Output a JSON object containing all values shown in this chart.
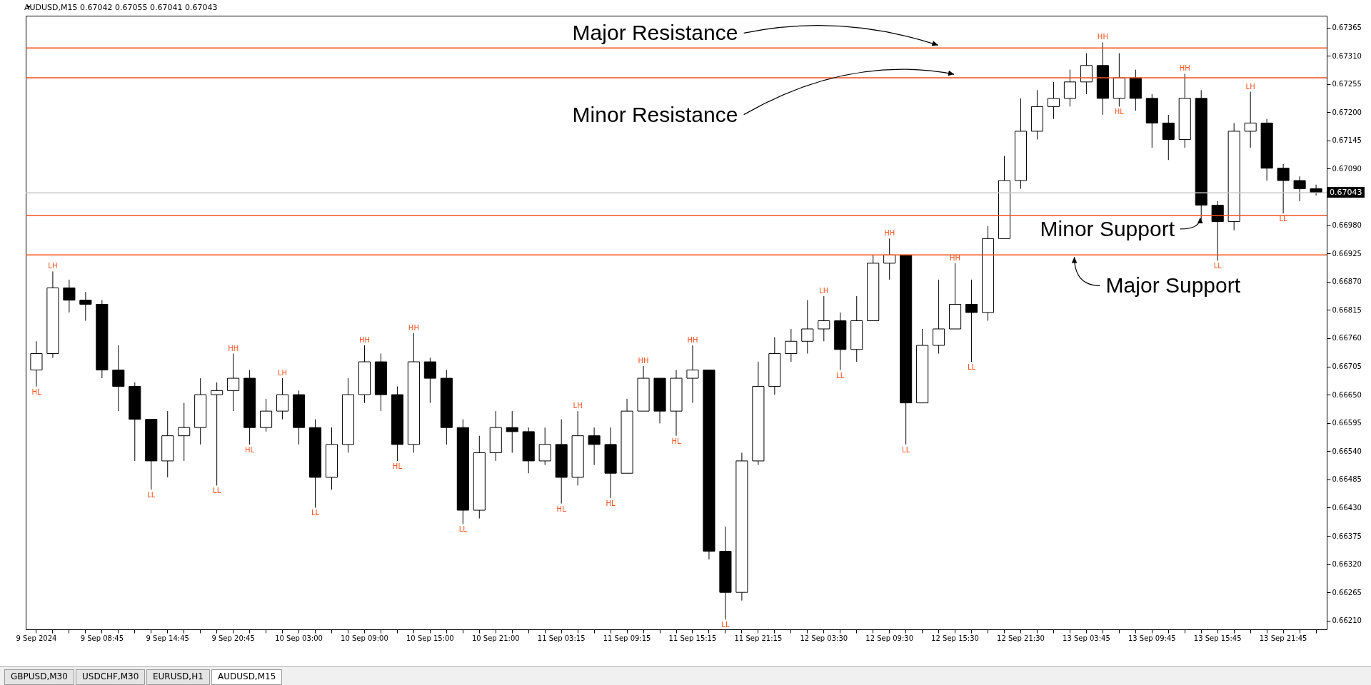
{
  "chart_data": {
    "type": "candlestick",
    "title": "AUDUSD,M15  0.67042 0.67055 0.67041 0.67043",
    "categories": [
      "9 Sep 2024",
      null,
      null,
      null,
      "9 Sep 08:45",
      null,
      null,
      null,
      "9 Sep 14:45",
      null,
      null,
      null,
      "9 Sep 20:45",
      null,
      null,
      null,
      "10 Sep 03:00",
      null,
      null,
      null,
      "10 Sep 09:00",
      null,
      null,
      null,
      "10 Sep 15:00",
      null,
      null,
      null,
      "10 Sep 21:00",
      null,
      null,
      null,
      "11 Sep 03:15",
      null,
      null,
      null,
      "11 Sep 09:15",
      null,
      null,
      null,
      "11 Sep 15:15",
      null,
      null,
      null,
      "11 Sep 21:15",
      null,
      null,
      null,
      "12 Sep 03:30",
      null,
      null,
      null,
      "12 Sep 09:30",
      null,
      null,
      null,
      "12 Sep 15:30",
      null,
      null,
      null,
      "12 Sep 21:30",
      null,
      null,
      null,
      "13 Sep 03:45",
      null,
      null,
      null,
      "13 Sep 09:45",
      null,
      null,
      null,
      "13 Sep 15:45",
      null,
      null,
      null,
      "13 Sep 21:45",
      null,
      null
    ],
    "ohlc": [
      [
        0.66698,
        0.66754,
        0.66666,
        0.6673
      ],
      [
        0.6673,
        0.6689,
        0.66722,
        0.66858
      ],
      [
        0.66858,
        0.66874,
        0.6681,
        0.66834
      ],
      [
        0.66834,
        0.6685,
        0.66794,
        0.66826
      ],
      [
        0.66826,
        0.66834,
        0.66682,
        0.66698
      ],
      [
        0.66698,
        0.66746,
        0.66618,
        0.66666
      ],
      [
        0.66666,
        0.66674,
        0.66521,
        0.66602
      ],
      [
        0.66602,
        0.66602,
        0.66465,
        0.66521
      ],
      [
        0.66521,
        0.66618,
        0.66489,
        0.6657
      ],
      [
        0.6657,
        0.66634,
        0.66521,
        0.66586
      ],
      [
        0.66586,
        0.66682,
        0.66553,
        0.6665
      ],
      [
        0.6665,
        0.66674,
        0.66473,
        0.66658
      ],
      [
        0.66658,
        0.6673,
        0.66618,
        0.66682
      ],
      [
        0.66682,
        0.66698,
        0.66553,
        0.66586
      ],
      [
        0.66586,
        0.66642,
        0.66578,
        0.66618
      ],
      [
        0.66618,
        0.66682,
        0.66602,
        0.6665
      ],
      [
        0.6665,
        0.66658,
        0.66553,
        0.66586
      ],
      [
        0.66586,
        0.66602,
        0.6643,
        0.66489
      ],
      [
        0.66489,
        0.66586,
        0.66465,
        0.66553
      ],
      [
        0.66553,
        0.66682,
        0.66537,
        0.6665
      ],
      [
        0.6665,
        0.66746,
        0.66634,
        0.66714
      ],
      [
        0.66714,
        0.6673,
        0.66618,
        0.6665
      ],
      [
        0.6665,
        0.66666,
        0.66521,
        0.66553
      ],
      [
        0.66553,
        0.6677,
        0.66537,
        0.66714
      ],
      [
        0.66714,
        0.66722,
        0.66634,
        0.66682
      ],
      [
        0.66682,
        0.66698,
        0.66553,
        0.66586
      ],
      [
        0.66586,
        0.66602,
        0.66398,
        0.66425
      ],
      [
        0.66425,
        0.6657,
        0.66409,
        0.66537
      ],
      [
        0.66537,
        0.66618,
        0.66521,
        0.66586
      ],
      [
        0.66586,
        0.66618,
        0.66537,
        0.66578
      ],
      [
        0.66578,
        0.66586,
        0.66497,
        0.66521
      ],
      [
        0.66521,
        0.66586,
        0.66513,
        0.66553
      ],
      [
        0.66553,
        0.66602,
        0.66438,
        0.66489
      ],
      [
        0.66489,
        0.66618,
        0.66473,
        0.6657
      ],
      [
        0.6657,
        0.66586,
        0.66513,
        0.66553
      ],
      [
        0.66553,
        0.66586,
        0.66449,
        0.66497
      ],
      [
        0.66497,
        0.66642,
        0.66497,
        0.66618
      ],
      [
        0.66618,
        0.66706,
        0.66618,
        0.66682
      ],
      [
        0.66682,
        0.66682,
        0.66594,
        0.66618
      ],
      [
        0.66618,
        0.66698,
        0.6657,
        0.66682
      ],
      [
        0.66682,
        0.66746,
        0.66634,
        0.66698
      ],
      [
        0.66698,
        0.66698,
        0.66329,
        0.66345
      ],
      [
        0.66345,
        0.66393,
        0.66212,
        0.66265
      ],
      [
        0.66265,
        0.66537,
        0.66249,
        0.66521
      ],
      [
        0.66521,
        0.66714,
        0.66513,
        0.66666
      ],
      [
        0.66666,
        0.66762,
        0.6665,
        0.6673
      ],
      [
        0.6673,
        0.66778,
        0.66714,
        0.66754
      ],
      [
        0.66754,
        0.66834,
        0.6673,
        0.66778
      ],
      [
        0.66778,
        0.66842,
        0.66754,
        0.66794
      ],
      [
        0.66794,
        0.6681,
        0.66698,
        0.66738
      ],
      [
        0.66738,
        0.66842,
        0.66714,
        0.66794
      ],
      [
        0.66794,
        0.66922,
        0.66794,
        0.66906
      ],
      [
        0.66906,
        0.66954,
        0.66874,
        0.66922
      ],
      [
        0.66922,
        0.66922,
        0.66553,
        0.66634
      ],
      [
        0.66634,
        0.66778,
        0.66634,
        0.66746
      ],
      [
        0.66746,
        0.66874,
        0.6673,
        0.66778
      ],
      [
        0.66778,
        0.66906,
        0.66778,
        0.66826
      ],
      [
        0.66826,
        0.66874,
        0.66714,
        0.6681
      ],
      [
        0.6681,
        0.66978,
        0.66794,
        0.66954
      ],
      [
        0.66954,
        0.67115,
        0.66954,
        0.67067
      ],
      [
        0.67067,
        0.67227,
        0.67051,
        0.67163
      ],
      [
        0.67163,
        0.67243,
        0.67147,
        0.67211
      ],
      [
        0.67211,
        0.67259,
        0.67187,
        0.67227
      ],
      [
        0.67227,
        0.67283,
        0.67211,
        0.67259
      ],
      [
        0.67259,
        0.67315,
        0.67235,
        0.67291
      ],
      [
        0.67291,
        0.67336,
        0.67195,
        0.67227
      ],
      [
        0.67227,
        0.67315,
        0.67211,
        0.67267
      ],
      [
        0.67267,
        0.67283,
        0.67203,
        0.67227
      ],
      [
        0.67227,
        0.67235,
        0.67131,
        0.67179
      ],
      [
        0.67179,
        0.67195,
        0.67107,
        0.67147
      ],
      [
        0.67147,
        0.67275,
        0.67131,
        0.67227
      ],
      [
        0.67227,
        0.67243,
        0.66987,
        0.67019
      ],
      [
        0.67019,
        0.67027,
        0.66911,
        0.66987
      ],
      [
        0.66987,
        0.67179,
        0.6697,
        0.67163
      ],
      [
        0.67163,
        0.6724,
        0.67131,
        0.67179
      ],
      [
        0.67179,
        0.67187,
        0.67067,
        0.67091
      ],
      [
        0.67091,
        0.67099,
        0.67003,
        0.67067
      ],
      [
        0.67067,
        0.67075,
        0.67027,
        0.67051
      ],
      [
        0.67051,
        0.67059,
        0.67038,
        0.67043
      ]
    ],
    "value_labels": [
      "HL",
      "LH",
      null,
      null,
      null,
      null,
      null,
      "LL",
      null,
      null,
      null,
      "LL",
      "HH",
      "HL",
      null,
      "LH",
      null,
      "LL",
      null,
      null,
      "HH",
      null,
      "HL",
      "HH",
      null,
      null,
      "LL",
      null,
      null,
      null,
      null,
      null,
      "HL",
      "LH",
      null,
      "HL",
      null,
      "HH",
      null,
      "HL",
      "HH",
      null,
      "LL",
      null,
      null,
      null,
      null,
      null,
      "LH",
      "LL",
      null,
      null,
      "HH",
      "LL",
      null,
      null,
      "HH",
      "LL",
      null,
      null,
      null,
      null,
      null,
      null,
      null,
      "HH",
      "HL",
      null,
      null,
      null,
      "HH",
      null,
      "LL",
      null,
      "LH",
      null,
      "LL",
      null,
      null
    ],
    "ylim": [
      0.66193,
      0.67388
    ],
    "yticks": [
      {
        "value": 0.67365,
        "label": "0.67365"
      },
      {
        "value": 0.6731,
        "label": "0.67310"
      },
      {
        "value": 0.67255,
        "label": "0.67255"
      },
      {
        "value": 0.672,
        "label": "0.67200"
      },
      {
        "value": 0.67145,
        "label": "0.67145"
      },
      {
        "value": 0.6709,
        "label": "0.67090"
      },
      {
        "value": 0.6698,
        "label": "0.66980"
      },
      {
        "value": 0.66925,
        "label": "0.66925"
      },
      {
        "value": 0.6687,
        "label": "0.66870"
      },
      {
        "value": 0.66815,
        "label": "0.66815"
      },
      {
        "value": 0.6676,
        "label": "0.66760"
      },
      {
        "value": 0.66705,
        "label": "0.66705"
      },
      {
        "value": 0.6665,
        "label": "0.66650"
      },
      {
        "value": 0.66595,
        "label": "0.66595"
      },
      {
        "value": 0.6654,
        "label": "0.66540"
      },
      {
        "value": 0.66485,
        "label": "0.66485"
      },
      {
        "value": 0.6643,
        "label": "0.66430"
      },
      {
        "value": 0.66375,
        "label": "0.66375"
      },
      {
        "value": 0.6632,
        "label": "0.66320"
      },
      {
        "value": 0.66265,
        "label": "0.66265"
      },
      {
        "value": 0.6621,
        "label": "0.66210"
      }
    ],
    "grid": false,
    "ref_lines": [
      {
        "axis": "y",
        "value": 0.67325,
        "label": "Major Resistance",
        "color": "#f4511e"
      },
      {
        "axis": "y",
        "value": 0.67267,
        "label": "Minor Resistance",
        "color": "#f4511e"
      },
      {
        "axis": "y",
        "value": 0.66922,
        "label": "Major Support",
        "color": "#f4511e"
      },
      {
        "axis": "y",
        "value": 0.66999,
        "label": "Minor Support",
        "color": "#f4511e"
      },
      {
        "axis": "y",
        "value": 0.67043,
        "label": "0.67043",
        "color": "#c8c8c8"
      }
    ],
    "annotations": [
      "GBPUSD,M30",
      "USDCHF,M30",
      "EURUSD,H1",
      "AUDUSD,M15"
    ]
  }
}
